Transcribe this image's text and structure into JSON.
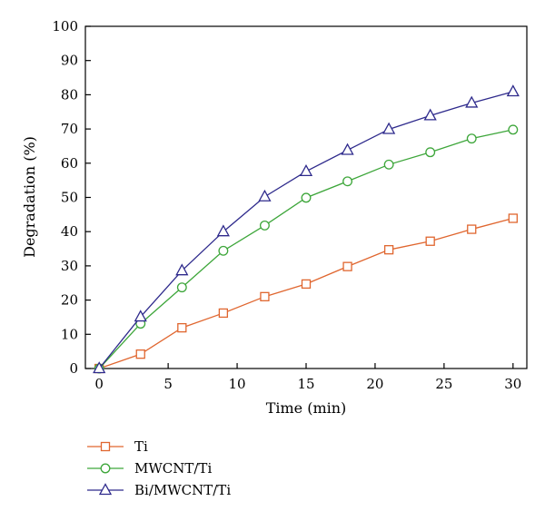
{
  "chart_data": {
    "type": "line",
    "title": "",
    "xlabel": "Time (min)",
    "ylabel": "Degradation (%)",
    "xlim": [
      -1,
      31
    ],
    "ylim": [
      0,
      100
    ],
    "xticks": [
      0,
      5,
      10,
      15,
      20,
      25,
      30
    ],
    "yticks": [
      0,
      10,
      20,
      30,
      40,
      50,
      60,
      70,
      80,
      90,
      100
    ],
    "grid": false,
    "legend_position": "bottom-left, below plot",
    "x": [
      0,
      3,
      6,
      9,
      12,
      15,
      18,
      21,
      24,
      27,
      30
    ],
    "series": [
      {
        "name": "Ti",
        "color": "#e0662f",
        "marker": "square",
        "values": [
          0,
          4.2,
          11.9,
          16.2,
          21.0,
          24.7,
          29.8,
          34.7,
          37.2,
          40.7,
          43.9
        ]
      },
      {
        "name": "MWCNT/Ti",
        "color": "#3da63a",
        "marker": "circle",
        "values": [
          0,
          13.1,
          23.7,
          34.4,
          41.8,
          49.9,
          54.7,
          59.6,
          63.2,
          67.2,
          69.8
        ]
      },
      {
        "name": "Bi/MWCNT/Ti",
        "color": "#2e2a8c",
        "marker": "triangle",
        "values": [
          0,
          15.1,
          28.6,
          40.0,
          50.2,
          57.6,
          63.8,
          69.9,
          73.9,
          77.6,
          80.9
        ]
      }
    ]
  }
}
